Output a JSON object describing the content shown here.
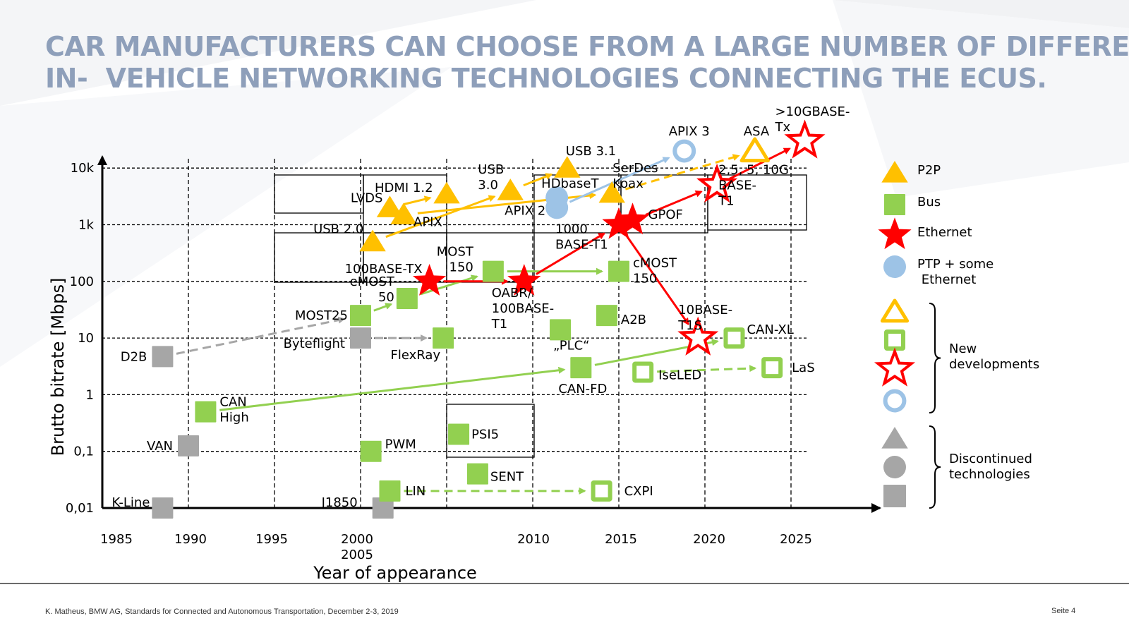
{
  "title_lines": [
    "CAR MANUFACTURERS CAN CHOOSE FROM A LARGE NUMBER OF DIFFERENT",
    "IN-  VEHICLE NETWORKING TECHNOLOGIES CONNECTING THE ECUS."
  ],
  "footer": {
    "left": "K. Matheus, BMW AG, Standards for Connected and Autonomous Transportation, December 2-3, 2019",
    "right": "Seite 4"
  },
  "colors": {
    "p2p": "#ffc000",
    "bus": "#92d050",
    "ethernet": "#ff0000",
    "ptp": "#9dc3e6",
    "discontinued": "#a6a6a6",
    "title": "#8e9fba"
  },
  "chart_data": {
    "type": "scatter",
    "xlabel": "Year of appearance",
    "ylabel": "Brutto bitrate [Mbps]",
    "x_ticks": [
      "1985",
      "1990",
      "1995",
      "2000\n2005",
      "2010",
      "2015",
      "2020",
      "2025"
    ],
    "y_ticks": [
      "0,01",
      "0,1",
      "1",
      "10",
      "100",
      "1k",
      "10k"
    ],
    "legend": [
      {
        "label": "P2P",
        "shape": "triangle",
        "style": "filled",
        "color": "#ffc000"
      },
      {
        "label": "Bus",
        "shape": "square",
        "style": "filled",
        "color": "#92d050"
      },
      {
        "label": "Ethernet",
        "shape": "star",
        "style": "filled",
        "color": "#ff0000"
      },
      {
        "label": "PTP + some\n Ethernet",
        "shape": "circle",
        "style": "filled",
        "color": "#9dc3e6"
      },
      {
        "label": "New\ndevelopments",
        "group": "new"
      },
      {
        "label": "Discontinued\ntechnologies",
        "group": "discontinued"
      }
    ],
    "points": [
      {
        "label": "K-Line",
        "x": 1988.5,
        "y": 0.01,
        "shape": "square",
        "style": "filled",
        "color": "#a6a6a6"
      },
      {
        "label": "VAN",
        "x": 1990,
        "y": 0.125,
        "shape": "square",
        "style": "filled",
        "color": "#a6a6a6"
      },
      {
        "label": "D2B",
        "x": 1988.5,
        "y": 4.7,
        "shape": "square",
        "style": "filled",
        "color": "#a6a6a6"
      },
      {
        "label": "CAN\nHigh",
        "x": 1991,
        "y": 0.5,
        "shape": "square",
        "style": "filled",
        "color": "#92d050"
      },
      {
        "label": "MOST25",
        "x": 2000,
        "y": 25,
        "shape": "square",
        "style": "filled",
        "color": "#92d050"
      },
      {
        "label": "Byteflight",
        "x": 2000,
        "y": 10,
        "shape": "square",
        "style": "filled",
        "color": "#a6a6a6"
      },
      {
        "label": "J1850",
        "x": 2001.3,
        "y": 0.01,
        "shape": "square",
        "style": "filled",
        "color": "#a6a6a6"
      },
      {
        "label": "PWM",
        "x": 2000.6,
        "y": 0.1,
        "shape": "square",
        "style": "filled",
        "color": "#92d050"
      },
      {
        "label": "LIN",
        "x": 2001.7,
        "y": 0.02,
        "shape": "square",
        "style": "filled",
        "color": "#92d050"
      },
      {
        "label": "eMOST\n50",
        "x": 2002.7,
        "y": 50,
        "shape": "square",
        "style": "filled",
        "color": "#92d050"
      },
      {
        "label": "FlexRay",
        "x": 2004.8,
        "y": 10,
        "shape": "square",
        "style": "filled",
        "color": "#92d050"
      },
      {
        "label": "PSI5",
        "x": 2005.7,
        "y": 0.2,
        "shape": "square",
        "style": "filled",
        "color": "#92d050"
      },
      {
        "label": "SENT",
        "x": 2006.8,
        "y": 0.04,
        "shape": "square",
        "style": "filled",
        "color": "#92d050"
      },
      {
        "label": "MOST\n150",
        "x": 2007.7,
        "y": 150,
        "shape": "square",
        "style": "filled",
        "color": "#92d050"
      },
      {
        "label": "100BASE-TX",
        "x": 2004,
        "y": 100,
        "shape": "star",
        "style": "filled",
        "color": "#ff0000"
      },
      {
        "label": "OABR/\n100BASE-\nT1",
        "x": 2009.5,
        "y": 100,
        "shape": "star",
        "style": "filled",
        "color": "#ff0000"
      },
      {
        "label": "USB 2.0",
        "x": 2000.7,
        "y": 500,
        "shape": "triangle",
        "style": "filled",
        "color": "#ffc000"
      },
      {
        "label": "LVDS",
        "x": 2001.7,
        "y": 2000,
        "shape": "triangle",
        "style": "filled",
        "color": "#ffc000"
      },
      {
        "label": "APIX",
        "x": 2002.5,
        "y": 1500,
        "shape": "triangle",
        "style": "filled",
        "color": "#ffc000"
      },
      {
        "label": "HDMI 1.2",
        "x": 2005,
        "y": 3500,
        "shape": "triangle",
        "style": "filled",
        "color": "#ffc000"
      },
      {
        "label": "USB\n3.0",
        "x": 2008.7,
        "y": 4000,
        "shape": "triangle",
        "style": "filled",
        "color": "#ffc000"
      },
      {
        "label": "APIX 2",
        "x": 2011.4,
        "y": 2000,
        "shape": "circle",
        "style": "filled",
        "color": "#9dc3e6"
      },
      {
        "label": "HDbaseT",
        "x": 2011.4,
        "y": 3000,
        "shape": "circle",
        "style": "filled",
        "color": "#9dc3e6"
      },
      {
        "label": "USB 3.1",
        "x": 2012,
        "y": 10000,
        "shape": "triangle",
        "style": "filled",
        "color": "#ffc000"
      },
      {
        "label": "SerDes\nKoax",
        "x": 2014.6,
        "y": 3600,
        "shape": "triangle",
        "style": "filled",
        "color": "#ffc000"
      },
      {
        "label": "1000\nBASE-T1",
        "x": 2015,
        "y": 1000,
        "shape": "star",
        "style": "filled",
        "color": "#ff0000"
      },
      {
        "label": "GPOF",
        "x": 2015.8,
        "y": 1200,
        "shape": "star",
        "style": "filled",
        "color": "#ff0000"
      },
      {
        "label": "cMOST\n150",
        "x": 2015,
        "y": 150,
        "shape": "square",
        "style": "filled",
        "color": "#92d050"
      },
      {
        "label": "„PLC“",
        "x": 2011.6,
        "y": 14,
        "shape": "square",
        "style": "filled",
        "color": "#92d050"
      },
      {
        "label": "A2B",
        "x": 2014.3,
        "y": 25,
        "shape": "square",
        "style": "filled",
        "color": "#92d050"
      },
      {
        "label": "CAN-FD",
        "x": 2012.8,
        "y": 3,
        "shape": "square",
        "style": "filled",
        "color": "#92d050"
      },
      {
        "label": "IseLED",
        "x": 2016.4,
        "y": 2.5,
        "shape": "square",
        "style": "outline",
        "color": "#92d050"
      },
      {
        "label": "CXPI",
        "x": 2014,
        "y": 0.02,
        "shape": "square",
        "style": "outline",
        "color": "#92d050"
      },
      {
        "label": "LaS",
        "x": 2023.9,
        "y": 3,
        "shape": "square",
        "style": "outline",
        "color": "#92d050"
      },
      {
        "label": "CAN-XL",
        "x": 2021.7,
        "y": 10,
        "shape": "square",
        "style": "outline",
        "color": "#92d050"
      },
      {
        "label": "10BASE-\nT1S",
        "x": 2019.6,
        "y": 10,
        "shape": "star",
        "style": "outline",
        "color": "#ff0000"
      },
      {
        "label": "APIX 3",
        "x": 2018.8,
        "y": 20000,
        "shape": "circle",
        "style": "outline",
        "color": "#9dc3e6"
      },
      {
        "label": "ASA",
        "x": 2022.9,
        "y": 20000,
        "shape": "triangle",
        "style": "outline",
        "color": "#ffc000"
      },
      {
        "label": ">10GBASE-\nTx",
        "x": 2025.8,
        "y": 30000,
        "shape": "star",
        "style": "outline",
        "color": "#ff0000"
      },
      {
        "label": "2,5, 5, 10G\nBASE-\nT1",
        "x": 2020.7,
        "y": 5000,
        "shape": "star",
        "style": "outline",
        "color": "#ff0000"
      }
    ]
  }
}
